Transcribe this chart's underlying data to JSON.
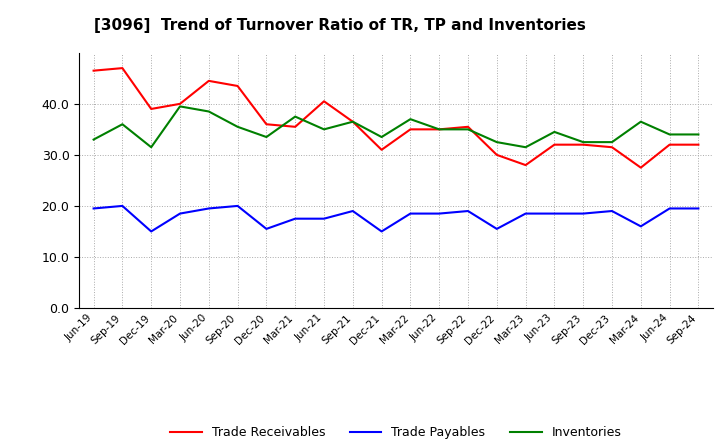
{
  "title": "[3096]  Trend of Turnover Ratio of TR, TP and Inventories",
  "x_labels": [
    "Jun-19",
    "Sep-19",
    "Dec-19",
    "Mar-20",
    "Jun-20",
    "Sep-20",
    "Dec-20",
    "Mar-21",
    "Jun-21",
    "Sep-21",
    "Dec-21",
    "Mar-22",
    "Jun-22",
    "Sep-22",
    "Dec-22",
    "Mar-23",
    "Jun-23",
    "Sep-23",
    "Dec-23",
    "Mar-24",
    "Jun-24",
    "Sep-24"
  ],
  "trade_receivables": [
    46.5,
    47.0,
    39.0,
    40.0,
    44.5,
    43.5,
    36.0,
    35.5,
    40.5,
    36.5,
    31.0,
    35.0,
    35.0,
    35.5,
    30.0,
    28.0,
    32.0,
    32.0,
    31.5,
    27.5,
    32.0,
    32.0
  ],
  "trade_payables": [
    19.5,
    20.0,
    15.0,
    18.5,
    19.5,
    20.0,
    15.5,
    17.5,
    17.5,
    19.0,
    15.0,
    18.5,
    18.5,
    19.0,
    15.5,
    18.5,
    18.5,
    18.5,
    19.0,
    16.0,
    19.5,
    19.5
  ],
  "inventories": [
    33.0,
    36.0,
    31.5,
    39.5,
    38.5,
    35.5,
    33.5,
    37.5,
    35.0,
    36.5,
    33.5,
    37.0,
    35.0,
    35.0,
    32.5,
    31.5,
    34.5,
    32.5,
    32.5,
    36.5,
    34.0,
    34.0
  ],
  "color_tr": "#FF0000",
  "color_tp": "#0000FF",
  "color_inv": "#008000",
  "ylim": [
    0,
    50
  ],
  "yticks": [
    0.0,
    10.0,
    20.0,
    30.0,
    40.0
  ],
  "background_color": "#FFFFFF",
  "plot_bg_color": "#FFFFFF",
  "grid_color": "#aaaaaa",
  "legend_labels": [
    "Trade Receivables",
    "Trade Payables",
    "Inventories"
  ]
}
